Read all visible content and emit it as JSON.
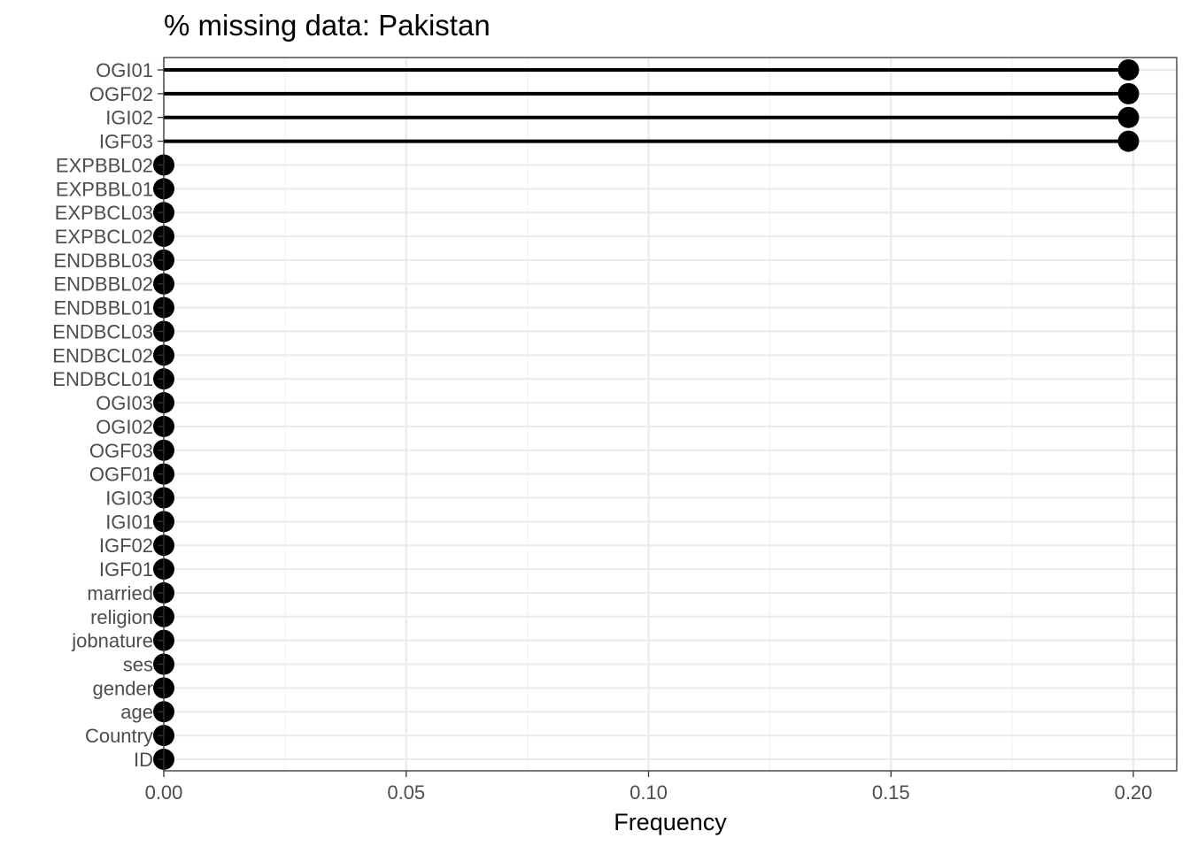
{
  "chart_data": {
    "type": "lollipop",
    "title": "% missing data: Pakistan",
    "xlabel": "Frequency",
    "ylabel": "",
    "xlim": [
      0,
      0.2
    ],
    "xticks": [
      "0.00",
      "0.05",
      "0.10",
      "0.15",
      "0.20"
    ],
    "grid": true,
    "categories": [
      "OGI01",
      "OGF02",
      "IGI02",
      "IGF03",
      "EXPBBL02",
      "EXPBBL01",
      "EXPBCL03",
      "EXPBCL02",
      "ENDBBL03",
      "ENDBBL02",
      "ENDBBL01",
      "ENDBCL03",
      "ENDBCL02",
      "ENDBCL01",
      "OGI03",
      "OGI02",
      "OGF03",
      "OGF01",
      "IGI03",
      "IGI01",
      "IGF02",
      "IGF01",
      "married",
      "religion",
      "jobnature",
      "ses",
      "gender",
      "age",
      "Country",
      "ID"
    ],
    "values": [
      0.199,
      0.199,
      0.199,
      0.199,
      0,
      0,
      0,
      0,
      0,
      0,
      0,
      0,
      0,
      0,
      0,
      0,
      0,
      0,
      0,
      0,
      0,
      0,
      0,
      0,
      0,
      0,
      0,
      0,
      0,
      0
    ]
  },
  "colors": {
    "panel_border": "#333333",
    "major_grid": "#ebebeb",
    "minor_grid": "#f3f3f3",
    "marker": "#000000"
  }
}
